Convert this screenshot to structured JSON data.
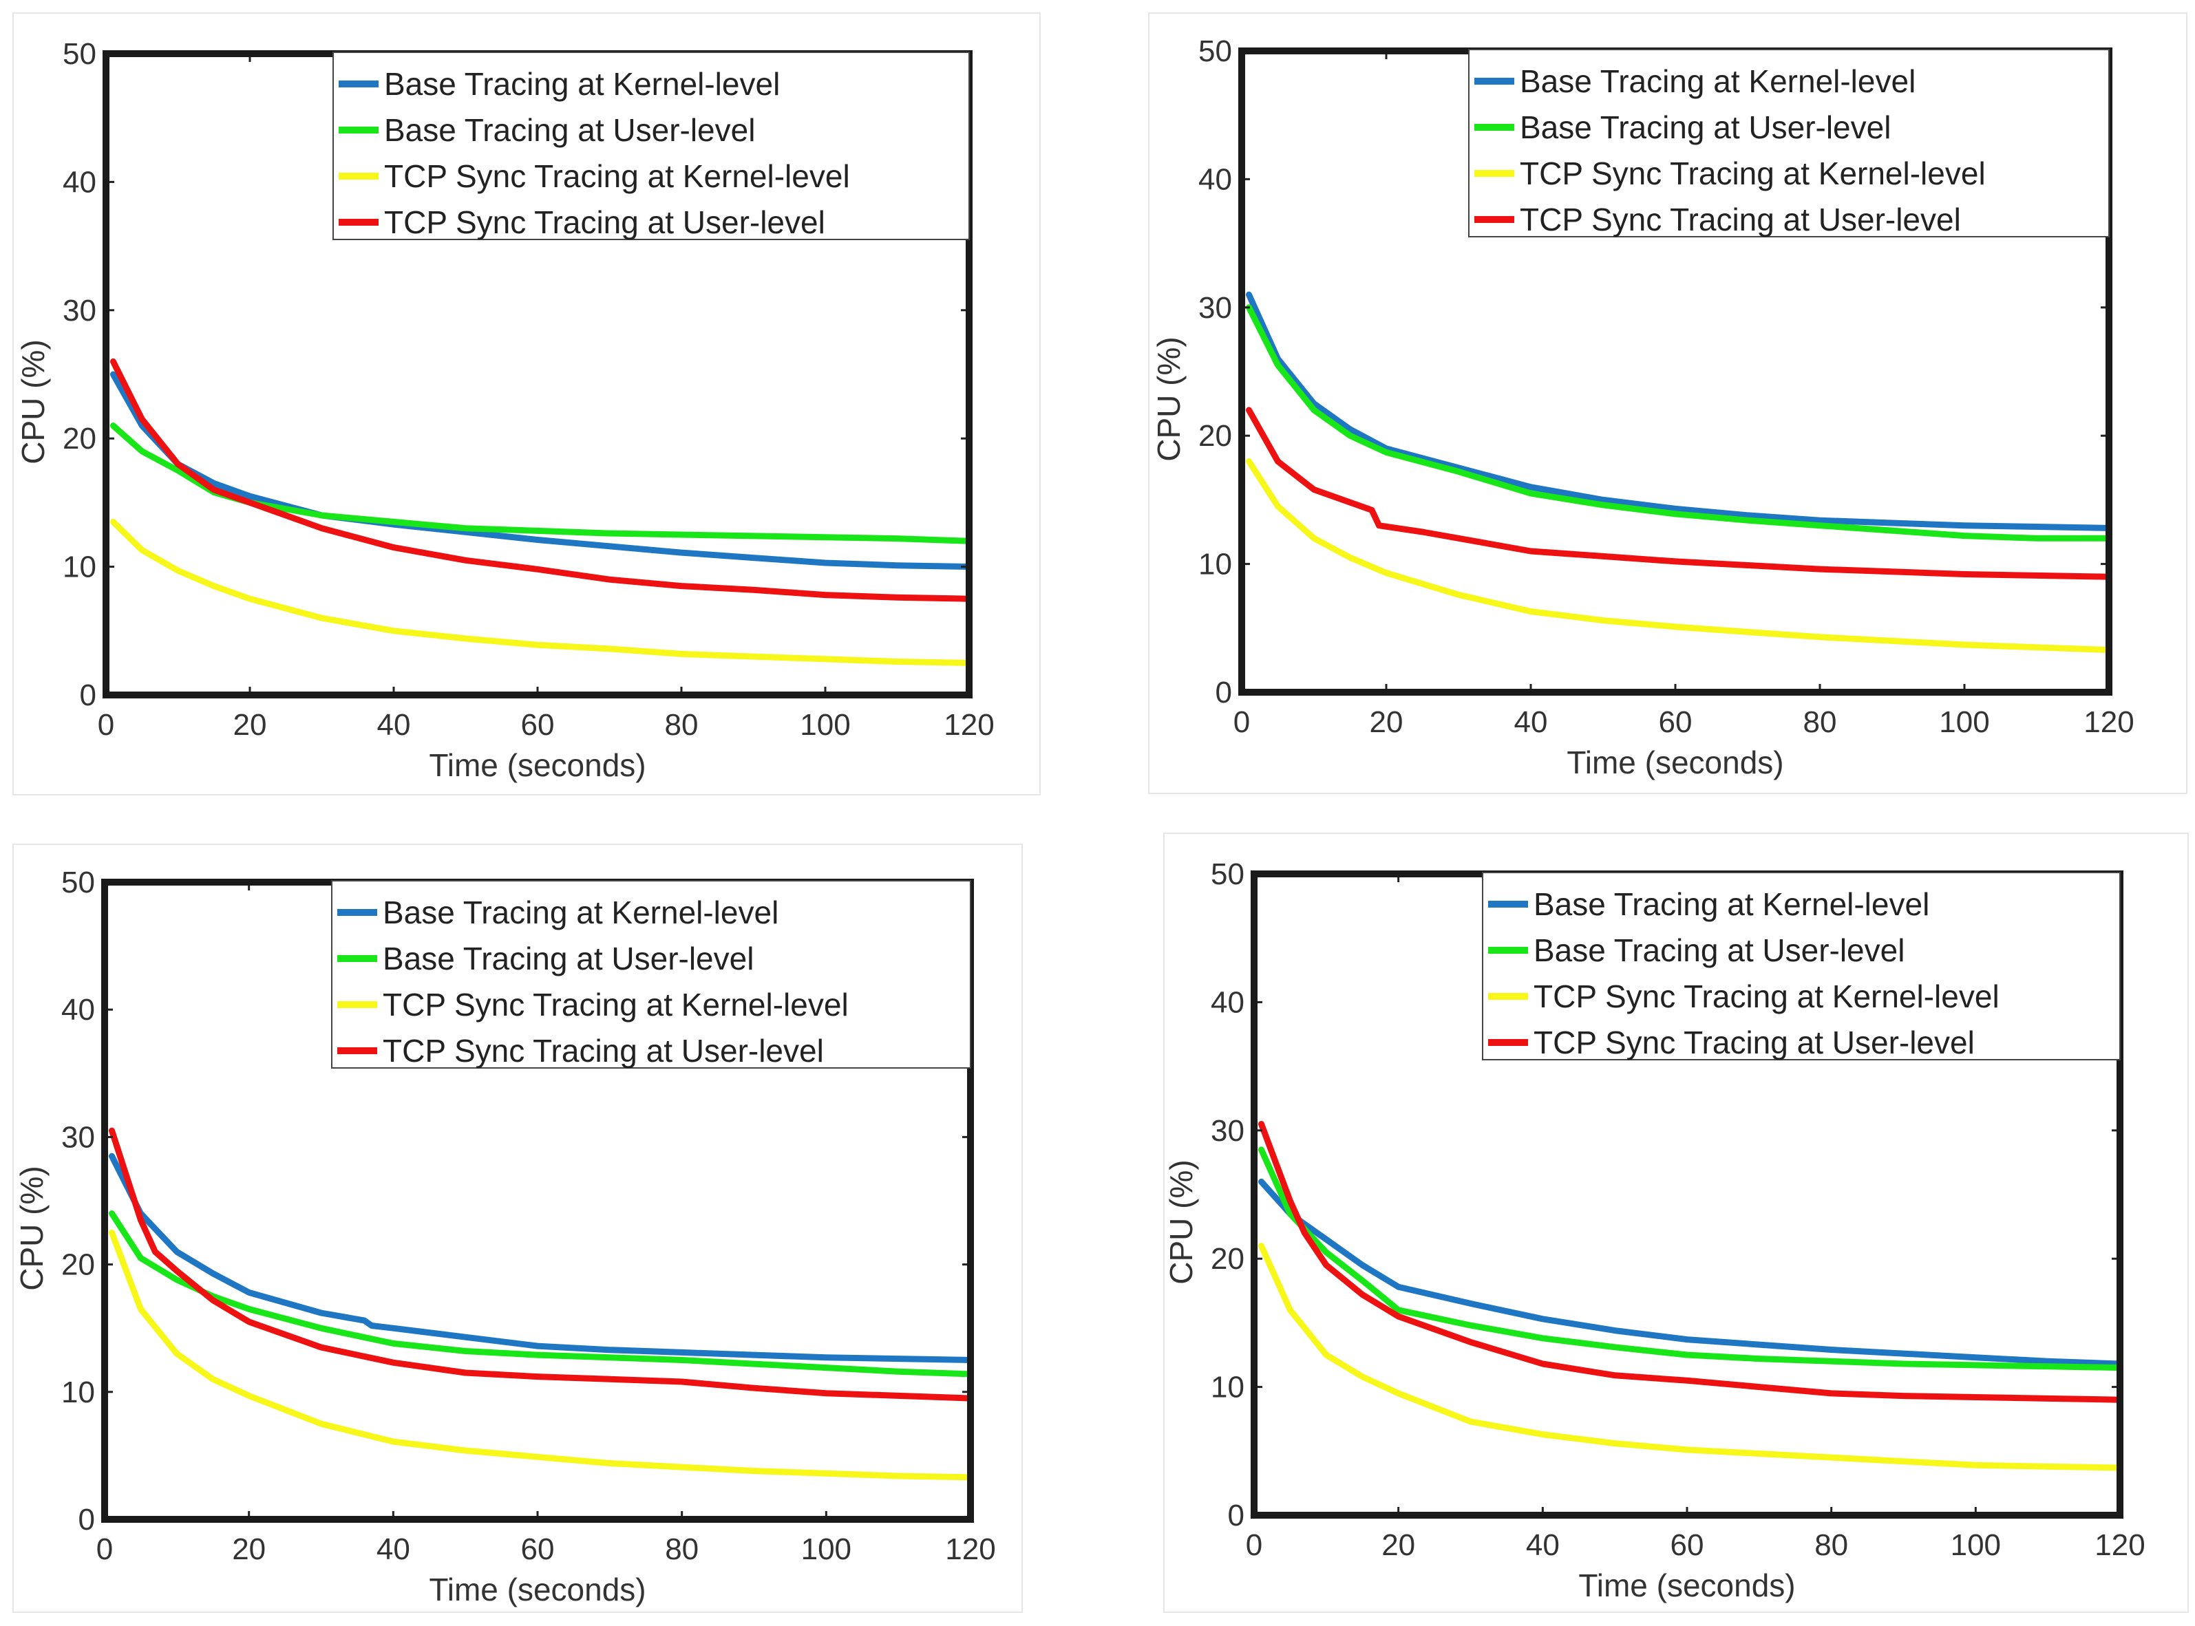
{
  "chart_data": [
    {
      "type": "line",
      "xlabel": "Time (seconds)",
      "ylabel": "CPU (%)",
      "xlim": [
        0,
        120
      ],
      "ylim": [
        0,
        50
      ],
      "xticks": [
        "0",
        "20",
        "40",
        "60",
        "80",
        "100",
        "120"
      ],
      "yticks": [
        "0",
        "10",
        "20",
        "30",
        "40",
        "50"
      ],
      "legend_position": "top-right",
      "grid": false,
      "series": [
        {
          "name": "Base Tracing at Kernel-level",
          "color": "#1f77c4",
          "x": [
            1,
            5,
            10,
            15,
            20,
            30,
            40,
            50,
            60,
            70,
            80,
            90,
            100,
            110,
            120
          ],
          "y": [
            25,
            21,
            18,
            16.5,
            15.5,
            14,
            13.3,
            12.7,
            12.1,
            11.6,
            11.1,
            10.7,
            10.3,
            10.1,
            10
          ]
        },
        {
          "name": "Base Tracing at User-level",
          "color": "#19e619",
          "x": [
            1,
            5,
            10,
            15,
            20,
            30,
            40,
            50,
            60,
            70,
            80,
            90,
            100,
            110,
            120
          ],
          "y": [
            21,
            19,
            17.5,
            15.8,
            15,
            14,
            13.5,
            13,
            12.8,
            12.6,
            12.5,
            12.4,
            12.3,
            12.2,
            12
          ]
        },
        {
          "name": "TCP Sync Tracing at Kernel-level",
          "color": "#f7f71a",
          "x": [
            1,
            5,
            10,
            15,
            20,
            30,
            40,
            50,
            60,
            70,
            80,
            90,
            100,
            110,
            120
          ],
          "y": [
            13.5,
            11.3,
            9.7,
            8.5,
            7.5,
            6,
            5,
            4.4,
            3.9,
            3.6,
            3.2,
            3,
            2.8,
            2.6,
            2.5
          ]
        },
        {
          "name": "TCP Sync Tracing at User-level",
          "color": "#ee1111",
          "x": [
            1,
            5,
            10,
            15,
            20,
            25,
            30,
            40,
            50,
            60,
            70,
            80,
            90,
            100,
            110,
            120
          ],
          "y": [
            26,
            21.5,
            18,
            16,
            15,
            14,
            13,
            11.5,
            10.5,
            9.8,
            9,
            8.5,
            8.2,
            7.8,
            7.6,
            7.5
          ]
        }
      ]
    },
    {
      "type": "line",
      "xlabel": "Time (seconds)",
      "ylabel": "CPU (%)",
      "xlim": [
        0,
        120
      ],
      "ylim": [
        0,
        50
      ],
      "xticks": [
        "0",
        "20",
        "40",
        "60",
        "80",
        "100",
        "120"
      ],
      "yticks": [
        "0",
        "10",
        "20",
        "30",
        "40",
        "50"
      ],
      "legend_position": "top-right",
      "grid": false,
      "series": [
        {
          "name": "Base Tracing at Kernel-level",
          "color": "#1f77c4",
          "x": [
            1,
            5,
            10,
            15,
            20,
            30,
            40,
            50,
            60,
            70,
            80,
            90,
            100,
            110,
            120
          ],
          "y": [
            31,
            26,
            22.5,
            20.5,
            19,
            17.5,
            16,
            15,
            14.3,
            13.8,
            13.4,
            13.2,
            13,
            12.9,
            12.8
          ]
        },
        {
          "name": "Base Tracing at User-level",
          "color": "#19e619",
          "x": [
            1,
            5,
            10,
            15,
            20,
            30,
            40,
            50,
            60,
            70,
            80,
            90,
            100,
            110,
            120
          ],
          "y": [
            30,
            25.5,
            22,
            20,
            18.7,
            17.2,
            15.5,
            14.6,
            13.9,
            13.4,
            13,
            12.6,
            12.2,
            12,
            12
          ]
        },
        {
          "name": "TCP Sync Tracing at Kernel-level",
          "color": "#f7f71a",
          "x": [
            1,
            5,
            10,
            15,
            20,
            30,
            40,
            50,
            60,
            70,
            80,
            90,
            100,
            110,
            120
          ],
          "y": [
            18,
            14.5,
            12,
            10.5,
            9.3,
            7.6,
            6.3,
            5.6,
            5.1,
            4.7,
            4.3,
            4,
            3.7,
            3.5,
            3.3
          ]
        },
        {
          "name": "TCP Sync Tracing at User-level",
          "color": "#ee1111",
          "x": [
            1,
            5,
            10,
            15,
            18,
            19,
            25,
            30,
            40,
            50,
            60,
            70,
            80,
            90,
            100,
            110,
            120
          ],
          "y": [
            22,
            18,
            15.8,
            14.8,
            14.2,
            13,
            12.5,
            12,
            11,
            10.6,
            10.2,
            9.9,
            9.6,
            9.4,
            9.2,
            9.1,
            9
          ]
        }
      ]
    },
    {
      "type": "line",
      "xlabel": "Time (seconds)",
      "ylabel": "CPU (%)",
      "xlim": [
        0,
        120
      ],
      "ylim": [
        0,
        50
      ],
      "xticks": [
        "0",
        "20",
        "40",
        "60",
        "80",
        "100",
        "120"
      ],
      "yticks": [
        "0",
        "10",
        "20",
        "30",
        "40",
        "50"
      ],
      "legend_position": "top-right",
      "grid": false,
      "series": [
        {
          "name": "Base Tracing at Kernel-level",
          "color": "#1f77c4",
          "x": [
            1,
            5,
            10,
            15,
            20,
            30,
            36,
            37,
            40,
            50,
            60,
            70,
            80,
            90,
            100,
            110,
            120
          ],
          "y": [
            28.5,
            24,
            21,
            19.3,
            17.8,
            16.2,
            15.6,
            15.2,
            15,
            14.3,
            13.6,
            13.3,
            13.1,
            12.9,
            12.7,
            12.6,
            12.5
          ]
        },
        {
          "name": "Base Tracing at User-level",
          "color": "#19e619",
          "x": [
            1,
            5,
            10,
            15,
            20,
            30,
            40,
            50,
            60,
            70,
            80,
            90,
            100,
            110,
            120
          ],
          "y": [
            24,
            20.5,
            18.8,
            17.5,
            16.5,
            15,
            13.8,
            13.2,
            12.9,
            12.7,
            12.5,
            12.2,
            11.9,
            11.6,
            11.4
          ]
        },
        {
          "name": "TCP Sync Tracing at Kernel-level",
          "color": "#f7f71a",
          "x": [
            1,
            5,
            10,
            15,
            20,
            30,
            40,
            50,
            60,
            70,
            80,
            90,
            100,
            110,
            120
          ],
          "y": [
            22.5,
            16.5,
            13,
            11,
            9.7,
            7.5,
            6.1,
            5.4,
            4.9,
            4.4,
            4.1,
            3.8,
            3.6,
            3.4,
            3.3
          ]
        },
        {
          "name": "TCP Sync Tracing at User-level",
          "color": "#ee1111",
          "x": [
            1,
            3,
            5,
            7,
            10,
            15,
            20,
            30,
            40,
            50,
            60,
            70,
            80,
            90,
            100,
            110,
            120
          ],
          "y": [
            30.5,
            27,
            23.5,
            21,
            19.5,
            17.2,
            15.5,
            13.5,
            12.3,
            11.5,
            11.2,
            11,
            10.8,
            10.3,
            9.9,
            9.7,
            9.5
          ]
        }
      ]
    },
    {
      "type": "line",
      "xlabel": "Time (seconds)",
      "ylabel": "CPU (%)",
      "xlim": [
        0,
        120
      ],
      "ylim": [
        0,
        50
      ],
      "xticks": [
        "0",
        "20",
        "40",
        "60",
        "80",
        "100",
        "120"
      ],
      "yticks": [
        "0",
        "10",
        "20",
        "30",
        "40",
        "50"
      ],
      "legend_position": "top-right",
      "grid": false,
      "series": [
        {
          "name": "Base Tracing at Kernel-level",
          "color": "#1f77c4",
          "x": [
            1,
            5,
            10,
            15,
            20,
            30,
            40,
            50,
            60,
            70,
            80,
            90,
            100,
            110,
            120
          ],
          "y": [
            26,
            23.5,
            21.5,
            19.5,
            17.8,
            16.5,
            15.3,
            14.4,
            13.7,
            13.3,
            12.9,
            12.6,
            12.3,
            12,
            11.8
          ]
        },
        {
          "name": "Base Tracing at User-level",
          "color": "#19e619",
          "x": [
            1,
            5,
            10,
            15,
            20,
            30,
            40,
            50,
            60,
            70,
            80,
            90,
            100,
            110,
            120
          ],
          "y": [
            28.5,
            23.5,
            20.5,
            18.3,
            16,
            14.8,
            13.8,
            13.1,
            12.5,
            12.2,
            12,
            11.8,
            11.7,
            11.6,
            11.5
          ]
        },
        {
          "name": "TCP Sync Tracing at Kernel-level",
          "color": "#f7f71a",
          "x": [
            1,
            5,
            10,
            15,
            20,
            30,
            40,
            50,
            60,
            70,
            80,
            90,
            100,
            110,
            120
          ],
          "y": [
            21,
            16,
            12.5,
            10.8,
            9.5,
            7.3,
            6.3,
            5.6,
            5.1,
            4.8,
            4.5,
            4.2,
            3.9,
            3.8,
            3.7
          ]
        },
        {
          "name": "TCP Sync Tracing at User-level",
          "color": "#ee1111",
          "x": [
            1,
            3,
            5,
            7,
            10,
            15,
            20,
            30,
            40,
            50,
            60,
            70,
            80,
            90,
            100,
            110,
            120
          ],
          "y": [
            30.5,
            27.5,
            24.5,
            22,
            19.5,
            17.2,
            15.5,
            13.5,
            11.8,
            10.9,
            10.5,
            10,
            9.5,
            9.3,
            9.2,
            9.1,
            9
          ]
        }
      ]
    }
  ]
}
